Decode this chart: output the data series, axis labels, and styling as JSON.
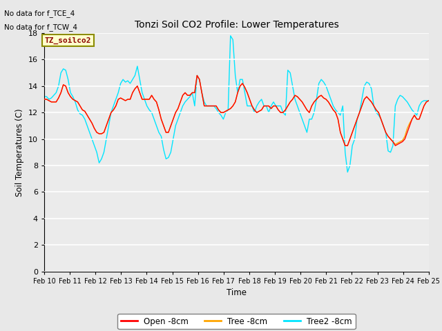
{
  "title": "Tonzi Soil CO2 Profile: Lower Temperatures",
  "ylabel": "Soil Temperatures (C)",
  "xlabel": "Time",
  "ylim": [
    0,
    18
  ],
  "yticks": [
    0,
    2,
    4,
    6,
    8,
    10,
    12,
    14,
    16,
    18
  ],
  "xtick_labels": [
    "Feb 10",
    "Feb 11",
    "Feb 12",
    "Feb 13",
    "Feb 14",
    "Feb 15",
    "Feb 16",
    "Feb 17",
    "Feb 18",
    "Feb 19",
    "Feb 20",
    "Feb 21",
    "Feb 22",
    "Feb 23",
    "Feb 24",
    "Feb 25"
  ],
  "no_data_text": [
    "No data for f_TCE_4",
    "No data for f_TCW_4"
  ],
  "label_box_text": "TZ_soilco2",
  "line_colors": [
    "#ff0000",
    "#ffa500",
    "#00e5ff"
  ],
  "line_labels": [
    "Open -8cm",
    "Tree -8cm",
    "Tree2 -8cm"
  ],
  "line_width": 1.0,
  "open_8cm": [
    13.0,
    13.0,
    12.9,
    12.8,
    12.8,
    12.8,
    13.1,
    13.5,
    14.1,
    14.0,
    13.5,
    13.2,
    13.0,
    12.9,
    12.8,
    12.5,
    12.2,
    12.1,
    11.8,
    11.5,
    11.2,
    10.8,
    10.5,
    10.4,
    10.4,
    10.5,
    11.0,
    11.5,
    12.0,
    12.2,
    12.5,
    13.0,
    13.1,
    13.0,
    12.9,
    13.0,
    13.0,
    13.5,
    13.8,
    14.0,
    13.5,
    13.0,
    13.0,
    13.0,
    13.0,
    13.3,
    13.0,
    12.8,
    12.2,
    11.5,
    11.0,
    10.5,
    10.5,
    11.0,
    11.5,
    12.0,
    12.3,
    12.8,
    13.3,
    13.5,
    13.3,
    13.3,
    13.5,
    13.5,
    14.8,
    14.5,
    13.5,
    12.5,
    12.5,
    12.5,
    12.5,
    12.5,
    12.5,
    12.2,
    12.0,
    12.0,
    12.1,
    12.2,
    12.3,
    12.5,
    12.8,
    13.5,
    14.0,
    14.2,
    13.9,
    13.5,
    13.0,
    12.5,
    12.2,
    12.0,
    12.1,
    12.2,
    12.5,
    12.5,
    12.5,
    12.3,
    12.5,
    12.5,
    12.2,
    12.0,
    12.0,
    12.2,
    12.5,
    12.8,
    13.0,
    13.3,
    13.2,
    13.0,
    12.8,
    12.5,
    12.2,
    12.0,
    12.5,
    12.8,
    13.0,
    13.2,
    13.3,
    13.1,
    13.0,
    12.8,
    12.5,
    12.2,
    12.0,
    11.5,
    10.5,
    10.0,
    9.5,
    9.5,
    10.0,
    10.5,
    11.0,
    11.5,
    12.0,
    12.5,
    13.0,
    13.2,
    13.0,
    12.8,
    12.5,
    12.2,
    12.0,
    11.5,
    11.0,
    10.5,
    10.2,
    10.0,
    9.8,
    9.5,
    9.6,
    9.7,
    9.8,
    10.0,
    10.5,
    11.0,
    11.5,
    11.8,
    11.5,
    11.5,
    12.0,
    12.5,
    12.8,
    12.9
  ],
  "tree_8cm": [
    13.0,
    13.0,
    12.9,
    12.8,
    12.8,
    12.8,
    13.1,
    13.5,
    14.1,
    14.0,
    13.5,
    13.2,
    13.0,
    12.9,
    12.8,
    12.5,
    12.2,
    12.1,
    11.8,
    11.5,
    11.2,
    10.8,
    10.5,
    10.4,
    10.4,
    10.5,
    11.0,
    11.5,
    12.0,
    12.2,
    12.5,
    13.0,
    13.1,
    13.0,
    12.9,
    13.0,
    13.0,
    13.5,
    13.8,
    14.0,
    13.5,
    13.0,
    13.0,
    13.0,
    13.0,
    13.3,
    13.0,
    12.8,
    12.2,
    11.5,
    11.0,
    10.5,
    10.5,
    11.0,
    11.5,
    12.0,
    12.3,
    12.8,
    13.3,
    13.5,
    13.3,
    13.3,
    13.5,
    13.5,
    14.8,
    14.5,
    13.5,
    12.5,
    12.5,
    12.5,
    12.5,
    12.5,
    12.5,
    12.2,
    12.0,
    12.0,
    12.1,
    12.2,
    12.3,
    12.5,
    12.8,
    13.5,
    14.0,
    14.2,
    13.9,
    13.5,
    13.0,
    12.5,
    12.2,
    12.0,
    12.1,
    12.2,
    12.5,
    12.5,
    12.5,
    12.3,
    12.5,
    12.5,
    12.2,
    12.0,
    12.0,
    12.2,
    12.5,
    12.8,
    13.0,
    13.3,
    13.2,
    13.0,
    12.8,
    12.5,
    12.2,
    12.0,
    12.5,
    12.8,
    13.0,
    13.2,
    13.3,
    13.1,
    13.0,
    12.8,
    12.5,
    12.2,
    12.0,
    11.5,
    10.5,
    10.0,
    9.5,
    9.5,
    10.0,
    10.5,
    11.0,
    11.5,
    12.0,
    12.5,
    13.0,
    13.2,
    13.0,
    12.8,
    12.5,
    12.2,
    12.0,
    11.5,
    11.0,
    10.5,
    10.2,
    10.0,
    9.8,
    9.6,
    9.7,
    9.8,
    9.9,
    10.2,
    10.8,
    11.2,
    11.5,
    11.8,
    11.5,
    11.5,
    12.0,
    12.5,
    12.8,
    12.9
  ],
  "tree2_8cm": [
    13.2,
    13.2,
    13.0,
    13.1,
    13.3,
    13.5,
    14.0,
    15.0,
    15.3,
    15.2,
    14.5,
    13.5,
    13.2,
    12.8,
    12.2,
    11.9,
    11.8,
    11.5,
    11.0,
    10.5,
    10.0,
    9.5,
    9.0,
    8.2,
    8.5,
    9.0,
    10.0,
    11.0,
    12.0,
    12.5,
    13.0,
    13.5,
    14.2,
    14.5,
    14.3,
    14.4,
    14.2,
    14.5,
    14.8,
    15.5,
    14.5,
    13.5,
    13.0,
    12.5,
    12.2,
    12.0,
    11.5,
    11.0,
    10.5,
    10.2,
    9.2,
    8.5,
    8.6,
    9.0,
    10.0,
    11.0,
    11.5,
    12.0,
    12.5,
    12.8,
    13.0,
    13.2,
    13.5,
    12.5,
    14.8,
    14.5,
    13.5,
    12.8,
    12.5,
    12.5,
    12.5,
    12.5,
    12.3,
    12.0,
    11.8,
    11.5,
    12.0,
    12.2,
    17.8,
    17.5,
    14.8,
    13.5,
    14.5,
    14.5,
    13.5,
    12.5,
    12.5,
    12.5,
    12.0,
    12.5,
    12.8,
    13.0,
    12.5,
    12.5,
    12.0,
    12.5,
    12.8,
    12.5,
    12.5,
    12.5,
    12.0,
    11.8,
    15.2,
    15.0,
    14.0,
    13.0,
    12.5,
    12.0,
    11.5,
    11.0,
    10.5,
    11.5,
    11.5,
    12.0,
    13.0,
    14.2,
    14.5,
    14.3,
    14.0,
    13.5,
    13.0,
    12.5,
    12.2,
    12.0,
    11.8,
    12.5,
    9.0,
    7.5,
    8.0,
    9.5,
    10.0,
    11.5,
    12.0,
    13.0,
    14.0,
    14.3,
    14.2,
    13.8,
    12.5,
    12.0,
    11.8,
    11.5,
    11.0,
    10.5,
    9.1,
    9.0,
    9.5,
    12.5,
    13.0,
    13.3,
    13.2,
    13.0,
    12.8,
    12.5,
    12.2,
    12.0,
    11.8,
    12.5,
    12.8,
    12.9,
    12.9,
    12.9
  ]
}
